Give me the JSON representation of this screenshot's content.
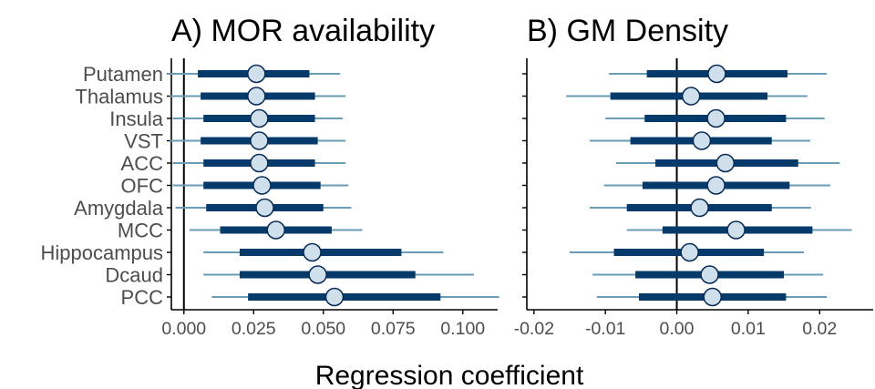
{
  "xlabel": "Regression coefficient",
  "colors": {
    "thin": "#6a9db5",
    "thick": "#063a6b",
    "point_fill": "#cfe0ec",
    "point_stroke": "#062a55",
    "zero_line": "#000000",
    "axis": "#000000"
  },
  "chart_data": [
    {
      "type": "forest",
      "title": "A) MOR availability",
      "categories": [
        "Putamen",
        "Thalamus",
        "Insula",
        "VST",
        "ACC",
        "OFC",
        "Amygdala",
        "MCC",
        "Hippocampus",
        "Dcaud",
        "PCC"
      ],
      "xticks": [
        0.0,
        0.025,
        0.05,
        0.075,
        0.1
      ],
      "xtick_labels": [
        "0.000",
        "0.025",
        "0.050",
        "0.075",
        "0.100"
      ],
      "xlim": [
        -0.0045,
        0.1125
      ],
      "series": [
        {
          "values": [
            0.026,
            0.026,
            0.027,
            0.027,
            0.027,
            0.028,
            0.029,
            0.033,
            0.046,
            0.048,
            0.054
          ]
        },
        {
          "lower_wide": [
            -0.006,
            -0.005,
            -0.004,
            -0.005,
            -0.004,
            -0.004,
            -0.003,
            0.002,
            0.007,
            0.007,
            0.01
          ]
        },
        {
          "upper_wide": [
            0.056,
            0.058,
            0.057,
            0.058,
            0.058,
            0.059,
            0.06,
            0.064,
            0.093,
            0.104,
            0.113
          ]
        },
        {
          "lower_narrow": [
            0.005,
            0.006,
            0.007,
            0.006,
            0.007,
            0.007,
            0.008,
            0.013,
            0.02,
            0.02,
            0.023
          ]
        },
        {
          "upper_narrow": [
            0.045,
            0.047,
            0.047,
            0.048,
            0.047,
            0.049,
            0.05,
            0.053,
            0.078,
            0.083,
            0.092
          ]
        }
      ]
    },
    {
      "type": "forest",
      "title": "B) GM Density",
      "categories": [
        "Putamen",
        "Thalamus",
        "Insula",
        "VST",
        "ACC",
        "OFC",
        "Amygdala",
        "MCC",
        "Hippocampus",
        "Dcaud",
        "PCC"
      ],
      "xticks": [
        -0.02,
        -0.01,
        0.0,
        0.01,
        0.02
      ],
      "xtick_labels": [
        "-0.02",
        "-0.01",
        "0.00",
        "0.01",
        "0.02"
      ],
      "xlim": [
        -0.021,
        0.0275
      ],
      "series": [
        {
          "values": [
            0.0056,
            0.002,
            0.0055,
            0.0035,
            0.0068,
            0.0055,
            0.0032,
            0.0083,
            0.0018,
            0.0046,
            0.005
          ]
        },
        {
          "lower_wide": [
            -0.0095,
            -0.0155,
            -0.01,
            -0.0122,
            -0.0085,
            -0.0102,
            -0.0122,
            -0.007,
            -0.015,
            -0.0118,
            -0.0112
          ]
        },
        {
          "upper_wide": [
            0.021,
            0.0183,
            0.0207,
            0.0187,
            0.0228,
            0.0215,
            0.0188,
            0.0245,
            0.0178,
            0.0205,
            0.021
          ]
        },
        {
          "lower_narrow": [
            -0.0042,
            -0.0093,
            -0.0045,
            -0.0065,
            -0.003,
            -0.0048,
            -0.007,
            -0.002,
            -0.0088,
            -0.0058,
            -0.0053
          ]
        },
        {
          "upper_narrow": [
            0.0155,
            0.0127,
            0.0153,
            0.0133,
            0.017,
            0.0158,
            0.0133,
            0.019,
            0.0122,
            0.015,
            0.0153
          ]
        }
      ]
    }
  ]
}
